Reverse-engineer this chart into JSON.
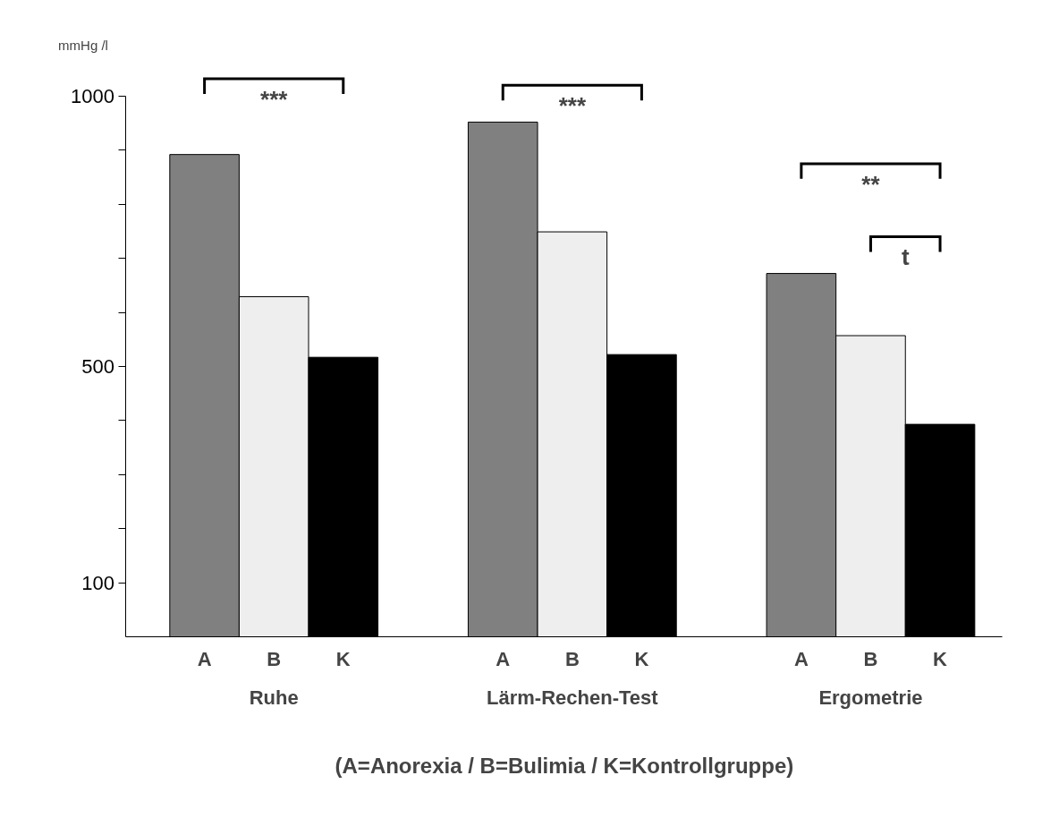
{
  "chart_data": {
    "type": "bar",
    "ylabel": "mmHg /l",
    "categories": [
      "Ruhe",
      "Lärm-Rechen-Test",
      "Ergometrie"
    ],
    "series": [
      {
        "name": "A",
        "color": "#808080",
        "values": [
          892,
          952,
          672
        ]
      },
      {
        "name": "B",
        "color": "#eeeeee",
        "values": [
          629,
          749,
          557
        ]
      },
      {
        "name": "K",
        "color": "#000000",
        "values": [
          517,
          522,
          393
        ]
      }
    ],
    "ylim": [
      0,
      1000
    ],
    "yticks": [
      {
        "value": 100,
        "label": "100"
      },
      {
        "value": 200,
        "label": null
      },
      {
        "value": 300,
        "label": null
      },
      {
        "value": 400,
        "label": null
      },
      {
        "value": 500,
        "label": "500"
      },
      {
        "value": 600,
        "label": null
      },
      {
        "value": 700,
        "label": null
      },
      {
        "value": 800,
        "label": null
      },
      {
        "value": 900,
        "label": null
      },
      {
        "value": 1000,
        "label": "1000"
      }
    ],
    "grid": false,
    "tick_labels": "y",
    "annotations": [
      "***",
      "***",
      "**",
      "t",
      "(A=Anorexia / B=Bulimia / K=Kontrollgruppe)"
    ]
  }
}
